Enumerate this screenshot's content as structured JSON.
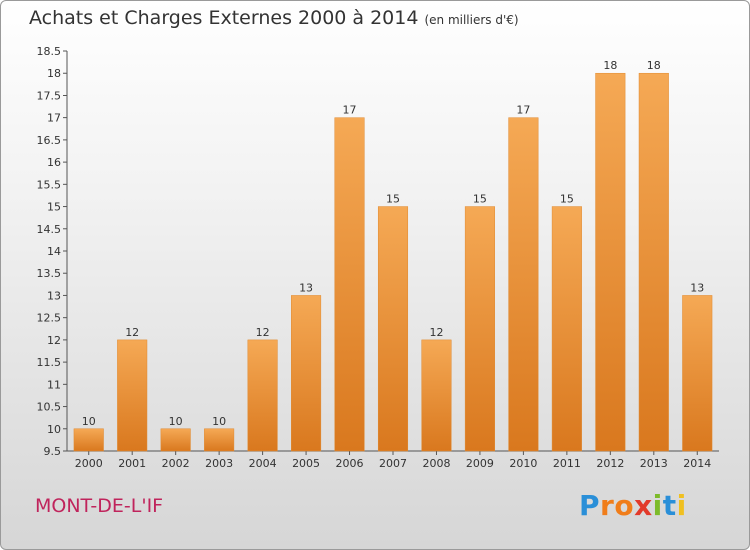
{
  "chart_data": {
    "type": "bar",
    "title": "Achats et Charges Externes 2000 à 2014",
    "subtitle": "(en milliers d'€)",
    "categories": [
      "2000",
      "2001",
      "2002",
      "2003",
      "2004",
      "2005",
      "2006",
      "2007",
      "2008",
      "2009",
      "2010",
      "2011",
      "2012",
      "2013",
      "2014"
    ],
    "values": [
      10,
      12,
      10,
      10,
      12,
      13,
      17,
      15,
      12,
      15,
      17,
      15,
      18,
      18,
      13
    ],
    "data_labels": [
      "10",
      "12",
      "10",
      "10",
      "12",
      "13",
      "17",
      "15",
      "12",
      "15",
      "17",
      "15",
      "18",
      "18",
      "13"
    ],
    "ylim": [
      9.5,
      18.5
    ],
    "yticks": [
      9.5,
      10,
      10.5,
      11,
      11.5,
      12,
      12.5,
      13,
      13.5,
      14,
      14.5,
      15,
      15.5,
      16,
      16.5,
      17,
      17.5,
      18,
      18.5
    ],
    "ytick_labels": [
      "9.5",
      "10",
      "10.5",
      "11",
      "11.5",
      "12",
      "12.5",
      "13",
      "13.5",
      "14",
      "14.5",
      "15",
      "15.5",
      "16",
      "16.5",
      "17",
      "17.5",
      "18",
      "18.5"
    ],
    "grid": false,
    "bar_color": "#f0a048",
    "bar_color_dark": "#d97a1c"
  },
  "location": "MONT-DE-L'IF",
  "brand": {
    "letters": [
      "P",
      "r",
      "o",
      "x",
      "i",
      "t",
      "i"
    ],
    "colors": [
      "#2a8fd8",
      "#f07d1a",
      "#f07d1a",
      "#e23a2a",
      "#7dbb2a",
      "#2a8fd8",
      "#f0c020"
    ]
  }
}
